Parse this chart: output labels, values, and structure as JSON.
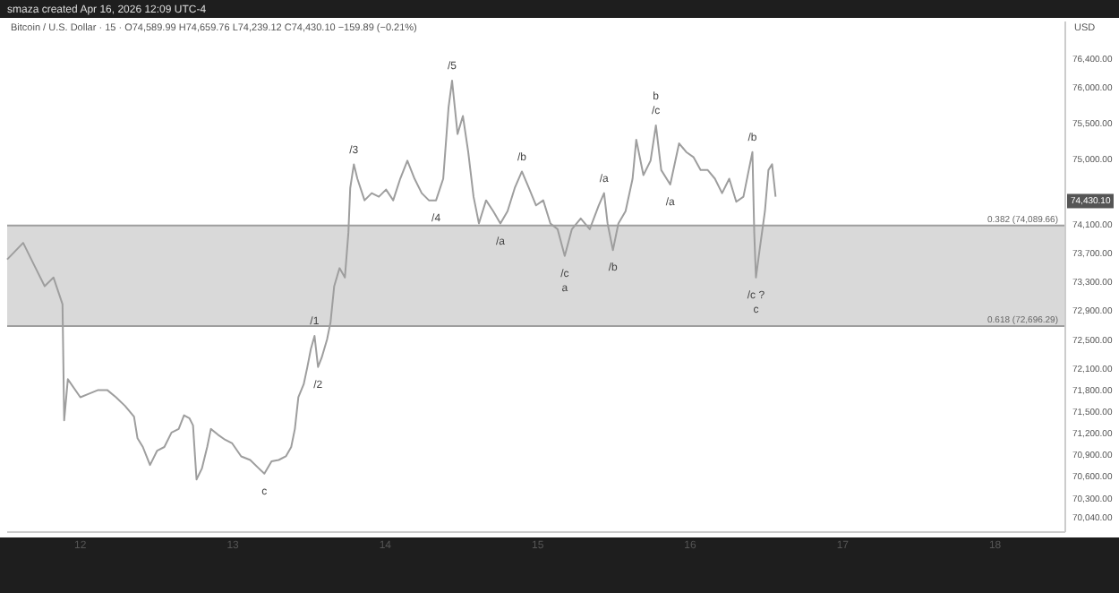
{
  "chart_data": {
    "type": "line",
    "title": "Bitcoin / U.S. Dollar · 15 · O74,589.99 H74,659.76 L74,239.12 C74,430.10 −159.89 (−0.21%)",
    "ylabel": "USD",
    "x": [
      11.52,
      11.625,
      11.707,
      11.766,
      11.824,
      11.883,
      11.894,
      11.918,
      12,
      12.059,
      12.117,
      12.176,
      12.234,
      12.293,
      12.352,
      12.375,
      12.41,
      12.457,
      12.504,
      12.551,
      12.598,
      12.645,
      12.68,
      12.715,
      12.739,
      12.762,
      12.797,
      12.832,
      12.856,
      12.903,
      12.95,
      12.996,
      13.055,
      13.114,
      13.172,
      13.207,
      13.254,
      13.301,
      13.348,
      13.383,
      13.407,
      13.43,
      13.465,
      13.489,
      13.512,
      13.536,
      13.559,
      13.583,
      13.618,
      13.641,
      13.665,
      13.7,
      13.735,
      13.758,
      13.77,
      13.794,
      13.817,
      13.864,
      13.911,
      13.958,
      14.005,
      14.052,
      14.098,
      14.145,
      14.192,
      14.239,
      14.286,
      14.333,
      14.38,
      14.415,
      14.438,
      14.474,
      14.509,
      14.544,
      14.579,
      14.614,
      14.661,
      14.708,
      14.755,
      14.802,
      14.849,
      14.896,
      14.942,
      14.989,
      15.036,
      15.083,
      15.13,
      15.177,
      15.224,
      15.282,
      15.341,
      15.4,
      15.435,
      15.458,
      15.493,
      15.529,
      15.576,
      15.622,
      15.646,
      15.693,
      15.74,
      15.775,
      15.81,
      15.869,
      15.927,
      15.974,
      16.021,
      16.068,
      16.115,
      16.162,
      16.209,
      16.256,
      16.302,
      16.349,
      16.384,
      16.408,
      16.42,
      16.431,
      16.455,
      16.49,
      16.513,
      16.537,
      16.56
    ],
    "series": [
      {
        "color": "#9e9e9e",
        "values": [
          73620,
          73850,
          73500,
          73250,
          73370,
          73000,
          71390,
          71960,
          71710,
          71760,
          71810,
          71810,
          71710,
          71590,
          71440,
          71140,
          71020,
          70770,
          70970,
          71020,
          71220,
          71270,
          71460,
          71420,
          71320,
          70570,
          70720,
          71020,
          71270,
          71190,
          71120,
          71070,
          70890,
          70840,
          70720,
          70650,
          70820,
          70840,
          70890,
          71020,
          71270,
          71710,
          71890,
          72130,
          72380,
          72560,
          72130,
          72260,
          72510,
          72750,
          73250,
          73500,
          73370,
          73990,
          74610,
          74940,
          74740,
          74440,
          74540,
          74490,
          74590,
          74440,
          74740,
          74990,
          74740,
          74540,
          74440,
          74440,
          74740,
          75730,
          76100,
          75360,
          75610,
          75110,
          74490,
          74120,
          74440,
          74290,
          74120,
          74290,
          74610,
          74840,
          74610,
          74370,
          74440,
          74120,
          74040,
          73670,
          74040,
          74190,
          74040,
          74370,
          74540,
          74120,
          73750,
          74120,
          74290,
          74740,
          75280,
          74790,
          74990,
          75480,
          74860,
          74660,
          75230,
          75110,
          75040,
          74860,
          74860,
          74740,
          74540,
          74740,
          74420,
          74490,
          74860,
          75110,
          73990,
          73370,
          73750,
          74290,
          74860,
          74940,
          74490
        ]
      }
    ],
    "xlim": [
      11.52,
      18.46
    ],
    "xticks": [
      12,
      13,
      14,
      15,
      16,
      17,
      18
    ],
    "ylim": [
      69840,
      76920
    ],
    "yticks": [
      {
        "value": 76400,
        "label": "76,400.00"
      },
      {
        "value": 76000,
        "label": "76,000.00"
      },
      {
        "value": 75500,
        "label": "75,500.00"
      },
      {
        "value": 75000,
        "label": "75,000.00"
      },
      {
        "value": 74100,
        "label": "74,100.00"
      },
      {
        "value": 73700,
        "label": "73,700.00"
      },
      {
        "value": 73300,
        "label": "73,300.00"
      },
      {
        "value": 72900,
        "label": "72,900.00"
      },
      {
        "value": 72500,
        "label": "72,500.00"
      },
      {
        "value": 72100,
        "label": "72,100.00"
      },
      {
        "value": 71800,
        "label": "71,800.00"
      },
      {
        "value": 71500,
        "label": "71,500.00"
      },
      {
        "value": 71200,
        "label": "71,200.00"
      },
      {
        "value": 70900,
        "label": "70,900.00"
      },
      {
        "value": 70600,
        "label": "70,600.00"
      },
      {
        "value": 70300,
        "label": "70,300.00"
      },
      {
        "value": 70040,
        "label": "70,040.00"
      }
    ],
    "bands": [
      {
        "axis": "y",
        "from": 72696.29,
        "to": 74089.66,
        "color": "#d9d9d9"
      }
    ],
    "ref_lines": [
      {
        "axis": "y",
        "value": 74089.66,
        "label": "0.382 (74,089.66)",
        "color": "#9e9e9e"
      },
      {
        "axis": "y",
        "value": 72696.29,
        "label": "0.618 (72,696.29)",
        "color": "#9e9e9e"
      }
    ],
    "annotations": [
      "smaza created Apr 16, 2026 12:09 UTC-4",
      {
        "text": "74,430.10",
        "y": 74430.1
      },
      {
        "text": "/1",
        "x": 13.536,
        "y": 72560
      },
      {
        "text": "/2",
        "x": 13.559,
        "y": 72130
      },
      {
        "text": "/3",
        "x": 13.794,
        "y": 74940
      },
      {
        "text": "/4",
        "x": 14.333,
        "y": 74440
      },
      {
        "text": "/5",
        "x": 14.438,
        "y": 76100
      },
      {
        "text": "c",
        "x": 13.207,
        "y": 70650
      },
      {
        "text": "/a",
        "x": 14.755,
        "y": 74120
      },
      {
        "text": "/b",
        "x": 14.896,
        "y": 74840
      },
      {
        "text": "/c",
        "x": 15.177,
        "y": 73670
      },
      {
        "text": "a",
        "x": 15.177,
        "y": 73670
      },
      {
        "text": "/a",
        "x": 15.435,
        "y": 74540
      },
      {
        "text": "/b",
        "x": 15.493,
        "y": 73750
      },
      {
        "text": "b",
        "x": 15.775,
        "y": 75480
      },
      {
        "text": "/c",
        "x": 15.775,
        "y": 75480
      },
      {
        "text": "/a",
        "x": 15.869,
        "y": 74660
      },
      {
        "text": "/b",
        "x": 16.408,
        "y": 75110
      },
      {
        "text": "/c ?",
        "x": 16.431,
        "y": 73370
      },
      {
        "text": "c",
        "x": 16.431,
        "y": 73370
      }
    ],
    "grid": false,
    "line_style": "solid",
    "marker": "none"
  }
}
